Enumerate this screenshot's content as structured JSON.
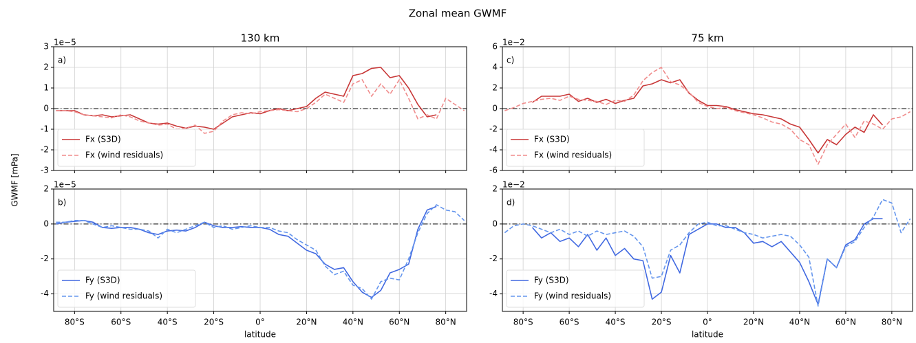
{
  "title": "Zonal mean GWMF",
  "ylabel": "GWMF [mPa]",
  "chart_data": [
    {
      "type": "line",
      "title": "130 km",
      "panel_label": "a)",
      "offset_text": "1e−5",
      "legend": "lower left",
      "grid": true,
      "hline": 0,
      "x": [
        -88,
        -84,
        -80,
        -76,
        -72,
        -68,
        -64,
        -60,
        -56,
        -52,
        -48,
        -44,
        -40,
        -36,
        -32,
        -28,
        -24,
        -20,
        -16,
        -12,
        -8,
        -4,
        0,
        4,
        8,
        12,
        16,
        20,
        24,
        28,
        32,
        36,
        40,
        44,
        48,
        52,
        56,
        60,
        64,
        68,
        72,
        76,
        80,
        84,
        88
      ],
      "xlim": [
        -89,
        89
      ],
      "xticks": [
        -80,
        -60,
        -40,
        -20,
        0,
        20,
        40,
        60,
        80
      ],
      "ylim": [
        -3,
        3
      ],
      "yticks": [
        -3,
        -2,
        -1,
        0,
        1,
        2,
        3
      ],
      "series": [
        {
          "name": "Fx (S3D)",
          "color": "#c83737",
          "dash": false,
          "values": [
            -0.1,
            -0.1,
            -0.1,
            -0.3,
            -0.35,
            -0.3,
            -0.4,
            -0.35,
            -0.3,
            -0.5,
            -0.7,
            -0.75,
            -0.7,
            -0.85,
            -0.95,
            -0.85,
            -0.9,
            -1.0,
            -0.7,
            -0.4,
            -0.3,
            -0.2,
            -0.25,
            -0.1,
            0.0,
            -0.1,
            0.0,
            0.1,
            0.5,
            0.8,
            0.7,
            0.6,
            1.6,
            1.7,
            1.95,
            2.0,
            1.5,
            1.6,
            1.0,
            0.2,
            -0.4,
            -0.3,
            null,
            null,
            null
          ]
        },
        {
          "name": "Fx (wind residuals)",
          "color": "#f08c8c",
          "dash": true,
          "values": [
            -0.1,
            -0.1,
            -0.15,
            -0.3,
            -0.35,
            -0.4,
            -0.45,
            -0.3,
            -0.4,
            -0.6,
            -0.7,
            -0.8,
            -0.75,
            -1.0,
            -0.95,
            -0.8,
            -1.2,
            -1.1,
            -0.6,
            -0.3,
            -0.2,
            -0.25,
            -0.15,
            -0.1,
            -0.05,
            -0.1,
            -0.15,
            0.0,
            0.3,
            0.7,
            0.5,
            0.3,
            1.2,
            1.4,
            0.6,
            1.2,
            0.7,
            1.4,
            0.5,
            -0.5,
            -0.3,
            -0.5,
            0.5,
            0.2,
            -0.1
          ]
        }
      ]
    },
    {
      "type": "line",
      "panel_label": "b)",
      "offset_text": "1e−5",
      "xlabel": "latitude",
      "legend": "lower left",
      "grid": true,
      "hline": 0,
      "x": [
        -88,
        -84,
        -80,
        -76,
        -72,
        -68,
        -64,
        -60,
        -56,
        -52,
        -48,
        -44,
        -40,
        -36,
        -32,
        -28,
        -24,
        -20,
        -16,
        -12,
        -8,
        -4,
        0,
        4,
        8,
        12,
        16,
        20,
        24,
        28,
        32,
        36,
        40,
        44,
        48,
        52,
        56,
        60,
        64,
        68,
        72,
        76,
        80,
        84,
        88
      ],
      "xlim": [
        -89,
        89
      ],
      "xticks": [
        {
          "value": -80,
          "label": "80°S"
        },
        {
          "value": -60,
          "label": "60°S"
        },
        {
          "value": -40,
          "label": "40°S"
        },
        {
          "value": -20,
          "label": "20°S"
        },
        {
          "value": 0,
          "label": "0°"
        },
        {
          "value": 20,
          "label": "20°N"
        },
        {
          "value": 40,
          "label": "40°N"
        },
        {
          "value": 60,
          "label": "60°N"
        },
        {
          "value": 80,
          "label": "80°N"
        }
      ],
      "ylim": [
        -5,
        2
      ],
      "yticks": [
        -4,
        -2,
        0,
        2
      ],
      "series": [
        {
          "name": "Fy (S3D)",
          "color": "#4169e1",
          "dash": false,
          "values": [
            0,
            0.1,
            0.15,
            0.2,
            0.1,
            -0.2,
            -0.25,
            -0.2,
            -0.2,
            -0.3,
            -0.5,
            -0.6,
            -0.4,
            -0.35,
            -0.4,
            -0.2,
            0.1,
            -0.1,
            -0.2,
            -0.2,
            -0.15,
            -0.2,
            -0.2,
            -0.3,
            -0.6,
            -0.7,
            -1.1,
            -1.5,
            -1.7,
            -2.3,
            -2.6,
            -2.5,
            -3.3,
            -3.9,
            -4.2,
            -3.8,
            -2.8,
            -2.6,
            -2.3,
            -0.3,
            0.8,
            1.0,
            null,
            null,
            null
          ]
        },
        {
          "name": "Fy (wind residuals)",
          "color": "#6495ed",
          "dash": true,
          "values": [
            0.1,
            0.1,
            0.2,
            0.2,
            0.0,
            -0.2,
            -0.1,
            -0.2,
            -0.3,
            -0.3,
            -0.4,
            -0.8,
            -0.3,
            -0.5,
            -0.3,
            -0.1,
            0.1,
            -0.2,
            -0.1,
            -0.3,
            -0.2,
            -0.1,
            -0.2,
            -0.2,
            -0.4,
            -0.5,
            -0.9,
            -1.2,
            -1.5,
            -2.4,
            -2.9,
            -2.7,
            -3.5,
            -3.7,
            -4.3,
            -3.3,
            -3.1,
            -3.2,
            -2.0,
            -0.5,
            0.6,
            1.1,
            0.8,
            0.7,
            0.2
          ]
        }
      ]
    },
    {
      "type": "line",
      "title": "75 km",
      "panel_label": "c)",
      "offset_text": "1e−2",
      "legend": "lower left",
      "grid": true,
      "hline": 0,
      "x": [
        -88,
        -84,
        -80,
        -76,
        -72,
        -68,
        -64,
        -60,
        -56,
        -52,
        -48,
        -44,
        -40,
        -36,
        -32,
        -28,
        -24,
        -20,
        -16,
        -12,
        -8,
        -4,
        0,
        4,
        8,
        12,
        16,
        20,
        24,
        28,
        32,
        36,
        40,
        44,
        48,
        52,
        56,
        60,
        64,
        68,
        72,
        76,
        80,
        84,
        88
      ],
      "xlim": [
        -89,
        89
      ],
      "xticks": [
        -80,
        -60,
        -40,
        -20,
        0,
        20,
        40,
        60,
        80
      ],
      "ylim": [
        -6,
        6
      ],
      "yticks": [
        -6,
        -4,
        -2,
        0,
        2,
        4,
        6
      ],
      "series": [
        {
          "name": "Fx (S3D)",
          "color": "#c83737",
          "dash": false,
          "values": [
            null,
            null,
            null,
            0.6,
            1.2,
            1.2,
            1.2,
            1.4,
            0.7,
            1.0,
            0.6,
            0.9,
            0.5,
            0.8,
            1.0,
            2.2,
            2.4,
            2.8,
            2.5,
            2.8,
            1.5,
            0.8,
            0.3,
            0.3,
            0.2,
            -0.1,
            -0.3,
            -0.5,
            -0.6,
            -0.8,
            -1.0,
            -1.5,
            -1.8,
            -3.0,
            -4.3,
            -3.0,
            -3.5,
            -2.5,
            -1.8,
            -2.3,
            -0.6,
            -1.6,
            null,
            null,
            null
          ]
        },
        {
          "name": "Fx (wind residuals)",
          "color": "#f08c8c",
          "dash": true,
          "values": [
            -0.2,
            0.1,
            0.5,
            0.7,
            0.9,
            1.0,
            0.8,
            1.2,
            0.9,
            0.8,
            0.7,
            0.4,
            0.8,
            0.7,
            1.3,
            2.7,
            3.5,
            4.0,
            2.6,
            2.3,
            1.6,
            0.6,
            0.2,
            0.0,
            0.1,
            -0.2,
            -0.4,
            -0.6,
            -0.9,
            -1.3,
            -1.5,
            -2.0,
            -3.0,
            -3.5,
            -5.4,
            -3.5,
            -2.5,
            -1.5,
            -2.8,
            -1.2,
            -1.5,
            -2.0,
            -1.0,
            -0.8,
            -0.3
          ]
        }
      ]
    },
    {
      "type": "line",
      "panel_label": "d)",
      "offset_text": "1e−2",
      "xlabel": "latitude",
      "legend": "lower left",
      "grid": true,
      "hline": 0,
      "x": [
        -88,
        -84,
        -80,
        -76,
        -72,
        -68,
        -64,
        -60,
        -56,
        -52,
        -48,
        -44,
        -40,
        -36,
        -32,
        -28,
        -24,
        -20,
        -16,
        -12,
        -8,
        -4,
        0,
        4,
        8,
        12,
        16,
        20,
        24,
        28,
        32,
        36,
        40,
        44,
        48,
        52,
        56,
        60,
        64,
        68,
        72,
        76,
        80,
        84,
        88
      ],
      "xlim": [
        -89,
        89
      ],
      "xticks": [
        {
          "value": -80,
          "label": "80°S"
        },
        {
          "value": -60,
          "label": "60°S"
        },
        {
          "value": -40,
          "label": "40°S"
        },
        {
          "value": -20,
          "label": "20°S"
        },
        {
          "value": 0,
          "label": "0°"
        },
        {
          "value": 20,
          "label": "20°N"
        },
        {
          "value": 40,
          "label": "40°N"
        },
        {
          "value": 60,
          "label": "60°N"
        },
        {
          "value": 80,
          "label": "80°N"
        }
      ],
      "ylim": [
        -5,
        2
      ],
      "yticks": [
        -4,
        -2,
        0,
        2
      ],
      "series": [
        {
          "name": "Fy (S3D)",
          "color": "#4169e1",
          "dash": false,
          "values": [
            null,
            null,
            null,
            -0.2,
            -0.8,
            -0.5,
            -1.0,
            -0.8,
            -1.3,
            -0.6,
            -1.5,
            -0.8,
            -1.8,
            -1.4,
            -2.0,
            -2.1,
            -4.3,
            -3.9,
            -1.8,
            -2.8,
            -0.6,
            -0.3,
            0.0,
            0.0,
            -0.2,
            -0.2,
            -0.5,
            -1.1,
            -1.0,
            -1.3,
            -1.0,
            -1.6,
            -2.2,
            -3.3,
            -4.6,
            -2.0,
            -2.5,
            -1.2,
            -0.9,
            0.0,
            0.3,
            0.3,
            null,
            null,
            null
          ]
        },
        {
          "name": "Fy (wind residuals)",
          "color": "#6495ed",
          "dash": true,
          "values": [
            -0.5,
            -0.1,
            0.0,
            -0.1,
            -0.3,
            -0.5,
            -0.3,
            -0.6,
            -0.4,
            -0.7,
            -0.4,
            -0.6,
            -0.5,
            -0.4,
            -0.7,
            -1.3,
            -3.1,
            -3.0,
            -1.5,
            -1.2,
            -0.5,
            0.0,
            0.1,
            -0.1,
            -0.1,
            -0.3,
            -0.5,
            -0.6,
            -0.8,
            -0.7,
            -0.6,
            -0.7,
            -1.2,
            -1.9,
            -4.7,
            -2.0,
            -2.5,
            -1.3,
            -1.0,
            -0.2,
            0.4,
            1.4,
            1.2,
            -0.5,
            0.3
          ]
        }
      ]
    }
  ]
}
